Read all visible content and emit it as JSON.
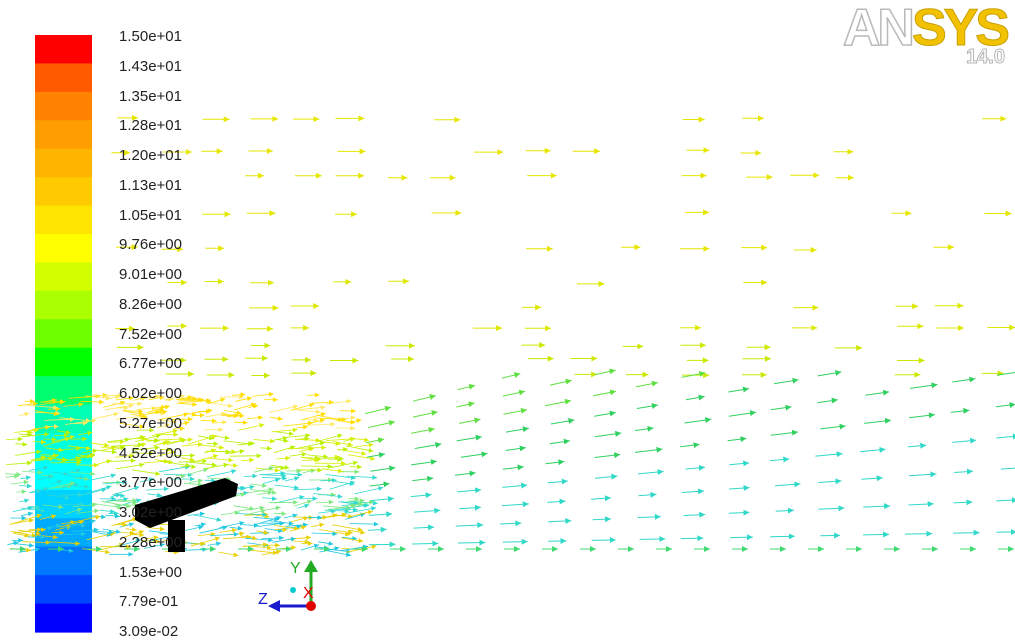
{
  "logo": {
    "brand_part1": "AN",
    "brand_part2": "SYS",
    "version": "14.0"
  },
  "legend": {
    "labels": [
      "1.50e+01",
      "1.43e+01",
      "1.35e+01",
      "1.28e+01",
      "1.20e+01",
      "1.13e+01",
      "1.05e+01",
      "9.76e+00",
      "9.01e+00",
      "8.26e+00",
      "7.52e+00",
      "6.77e+00",
      "6.02e+00",
      "5.27e+00",
      "4.52e+00",
      "3.77e+00",
      "3.02e+00",
      "2.28e+00",
      "1.53e+00",
      "7.79e-01",
      "3.09e-02"
    ],
    "colors": [
      "#ff0000",
      "#ff5a00",
      "#ff8200",
      "#ff9e00",
      "#ffb400",
      "#ffca00",
      "#ffe400",
      "#ffff00",
      "#d2ff00",
      "#aaff00",
      "#6eff00",
      "#00ff00",
      "#00ff6e",
      "#00ffb4",
      "#00ffe0",
      "#00ffff",
      "#00d2ff",
      "#00aaff",
      "#0078ff",
      "#0046ff",
      "#0000ff"
    ]
  },
  "axes_triad": {
    "y_label": "Y",
    "z_label": "Z",
    "x_label": "X"
  }
}
